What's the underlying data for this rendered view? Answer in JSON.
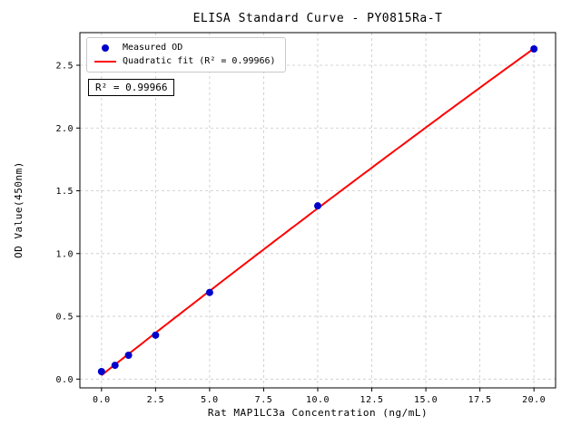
{
  "annotation": {
    "text": "R² = 0.99966"
  },
  "legend": {
    "items": [
      {
        "marker": "point",
        "label": "Measured OD"
      },
      {
        "marker": "line",
        "label": "Quadratic fit (R² = 0.99966)"
      }
    ]
  },
  "chart_data": {
    "type": "scatter",
    "title": "ELISA Standard Curve - PY0815Ra-T",
    "xlabel": "Rat MAP1LC3a Concentration (ng/mL)",
    "ylabel": "OD Value(450nm)",
    "x": [
      0,
      0.625,
      1.25,
      2.5,
      5,
      10,
      20
    ],
    "y": [
      0.06,
      0.11,
      0.19,
      0.35,
      0.69,
      1.38,
      2.63
    ],
    "fit": "quadratic",
    "r_squared": 0.99966,
    "xticks": [
      0.0,
      2.5,
      5.0,
      7.5,
      10.0,
      12.5,
      15.0,
      17.5,
      20.0
    ],
    "xtick_labels": [
      "0.0",
      "2.5",
      "5.0",
      "7.5",
      "10.0",
      "12.5",
      "15.0",
      "17.5",
      "20.0"
    ],
    "yticks": [
      0.0,
      0.5,
      1.0,
      1.5,
      2.0,
      2.5
    ],
    "ytick_labels": [
      "0.0",
      "0.5",
      "1.0",
      "1.5",
      "2.0",
      "2.5"
    ],
    "xlim": [
      -1.0,
      21.0
    ],
    "ylim": [
      -0.07,
      2.76
    ],
    "grid": true,
    "legend_position": "upper left",
    "point_color": "#0000cd",
    "line_color": "#ff0000",
    "grid_color": "#c8c8c8",
    "spine_color": "#000000"
  }
}
